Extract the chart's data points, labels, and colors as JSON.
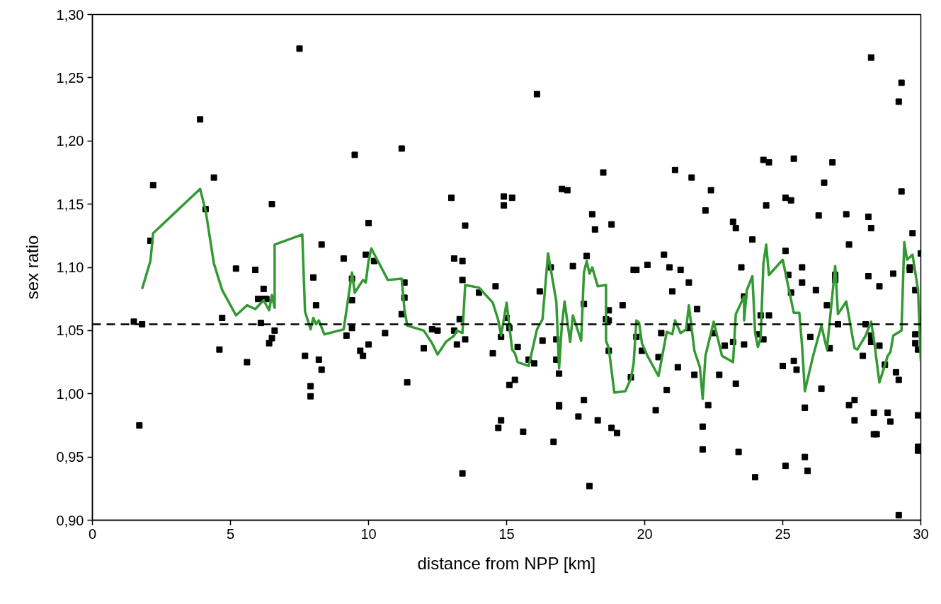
{
  "chart_data": {
    "type": "scatter",
    "xlabel": "distance from NPP [km]",
    "ylabel": "sex ratio",
    "xlim": [
      0,
      30
    ],
    "ylim": [
      0.9,
      1.3
    ],
    "xticks": [
      0,
      5,
      10,
      15,
      20,
      25,
      30
    ],
    "yticks": [
      {
        "value": 0.9,
        "label": "0,90"
      },
      {
        "value": 0.95,
        "label": "0,95"
      },
      {
        "value": 1.0,
        "label": "1,00"
      },
      {
        "value": 1.05,
        "label": "1,05"
      },
      {
        "value": 1.1,
        "label": "1,10"
      },
      {
        "value": 1.15,
        "label": "1,15"
      },
      {
        "value": 1.2,
        "label": "1,20"
      },
      {
        "value": 1.25,
        "label": "1,25"
      },
      {
        "value": 1.3,
        "label": "1,30"
      }
    ],
    "grid": false,
    "ref_lines": [
      {
        "axis": "y",
        "value": 1.055,
        "label": null,
        "color": "#000000",
        "line_style": "dashed"
      }
    ],
    "series": [
      {
        "color": "#000000",
        "marker": "square",
        "x": [
          1.5,
          1.7,
          1.8,
          2.1,
          2.2,
          3.9,
          4.1,
          4.4,
          4.6,
          4.7,
          5.2,
          5.6,
          5.9,
          6.0,
          6.1,
          6.2,
          6.2,
          6.3,
          6.4,
          6.5,
          6.5,
          6.6,
          7.5,
          7.7,
          7.9,
          7.9,
          8.0,
          8.1,
          8.2,
          8.3,
          8.3,
          9.1,
          9.2,
          9.4,
          9.4,
          9.4,
          9.5,
          9.7,
          9.8,
          9.9,
          10.0,
          10.0,
          10.2,
          10.6,
          11.2,
          11.2,
          11.3,
          11.3,
          11.4,
          12.0,
          12.3,
          12.5,
          13.0,
          13.1,
          13.1,
          13.2,
          13.3,
          13.4,
          13.4,
          13.4,
          13.5,
          13.5,
          14.0,
          14.5,
          14.6,
          14.7,
          14.8,
          14.8,
          14.9,
          14.9,
          15.0,
          15.1,
          15.1,
          15.2,
          15.3,
          15.4,
          15.6,
          15.8,
          16.0,
          16.1,
          16.2,
          16.3,
          16.6,
          16.7,
          16.8,
          16.8,
          16.9,
          16.9,
          16.9,
          17.0,
          17.2,
          17.4,
          17.6,
          17.8,
          17.8,
          17.9,
          18.0,
          18.1,
          18.2,
          18.3,
          18.5,
          18.6,
          18.7,
          18.7,
          18.7,
          18.8,
          18.8,
          19.0,
          19.2,
          19.5,
          19.6,
          19.7,
          19.7,
          19.9,
          20.1,
          20.4,
          20.5,
          20.6,
          20.7,
          20.8,
          20.9,
          21.0,
          21.1,
          21.2,
          21.3,
          21.6,
          21.6,
          21.7,
          21.8,
          21.9,
          22.1,
          22.1,
          22.2,
          22.3,
          22.4,
          22.5,
          22.7,
          22.9,
          23.2,
          23.2,
          23.3,
          23.3,
          23.4,
          23.5,
          23.6,
          23.6,
          23.9,
          24.0,
          24.1,
          24.2,
          24.3,
          24.3,
          24.4,
          24.5,
          24.5,
          25.0,
          25.1,
          25.1,
          25.1,
          25.2,
          25.3,
          25.3,
          25.4,
          25.4,
          25.5,
          25.7,
          25.7,
          25.8,
          25.8,
          25.9,
          26.0,
          26.2,
          26.3,
          26.4,
          26.5,
          26.6,
          26.7,
          26.8,
          26.9,
          26.9,
          27.0,
          27.3,
          27.4,
          27.4,
          27.6,
          27.6,
          27.9,
          28.0,
          28.1,
          28.1,
          28.2,
          28.2,
          28.2,
          28.2,
          28.3,
          28.3,
          28.4,
          28.5,
          28.5,
          28.7,
          28.8,
          28.9,
          29.0,
          29.1,
          29.2,
          29.2,
          29.2,
          29.3,
          29.3,
          29.6,
          29.6,
          29.7,
          29.8,
          29.8,
          29.8,
          29.9,
          29.9,
          29.9,
          29.9,
          30.0
        ],
        "values": [
          1.057,
          0.975,
          1.055,
          1.121,
          1.165,
          1.217,
          1.146,
          1.171,
          1.035,
          1.06,
          1.099,
          1.025,
          1.098,
          1.075,
          1.056,
          1.083,
          1.075,
          1.075,
          1.04,
          1.044,
          1.15,
          1.05,
          1.273,
          1.03,
          1.006,
          0.998,
          1.092,
          1.07,
          1.027,
          1.118,
          1.019,
          1.107,
          1.046,
          1.091,
          1.074,
          1.052,
          1.189,
          1.034,
          1.03,
          1.11,
          1.135,
          1.039,
          1.105,
          1.048,
          1.194,
          1.063,
          1.088,
          1.076,
          1.009,
          1.036,
          1.051,
          1.05,
          1.155,
          1.107,
          1.05,
          1.039,
          1.059,
          0.937,
          1.105,
          1.09,
          1.043,
          1.133,
          1.08,
          1.032,
          1.085,
          0.973,
          1.045,
          0.979,
          1.156,
          1.149,
          1.06,
          1.007,
          1.052,
          1.155,
          1.011,
          1.037,
          0.97,
          1.027,
          1.024,
          1.237,
          1.081,
          1.042,
          1.1,
          0.962,
          1.043,
          1.027,
          1.016,
          0.991,
          0.99,
          1.162,
          1.161,
          1.101,
          0.982,
          0.995,
          1.071,
          1.109,
          0.927,
          1.142,
          1.13,
          0.979,
          1.175,
          1.059,
          1.058,
          1.034,
          1.066,
          1.134,
          0.973,
          0.969,
          1.07,
          1.013,
          1.098,
          1.098,
          1.045,
          1.034,
          1.102,
          0.987,
          1.029,
          1.048,
          1.11,
          1.003,
          1.1,
          1.081,
          1.177,
          1.021,
          1.098,
          1.088,
          1.052,
          1.171,
          1.015,
          1.067,
          0.974,
          0.956,
          1.145,
          0.991,
          1.161,
          1.048,
          1.015,
          1.038,
          1.136,
          1.041,
          1.131,
          1.008,
          0.954,
          1.1,
          1.077,
          1.039,
          1.122,
          0.934,
          1.047,
          1.062,
          1.185,
          1.043,
          1.149,
          1.183,
          1.062,
          1.022,
          0.943,
          1.113,
          1.155,
          1.094,
          1.153,
          1.08,
          1.186,
          1.026,
          1.019,
          1.1,
          1.088,
          0.989,
          0.95,
          0.939,
          1.045,
          1.082,
          1.141,
          1.004,
          1.167,
          1.07,
          1.036,
          1.183,
          1.094,
          1.09,
          1.055,
          1.142,
          0.991,
          1.118,
          0.995,
          0.979,
          1.03,
          1.055,
          1.14,
          1.093,
          1.266,
          1.046,
          1.131,
          1.041,
          0.985,
          0.968,
          0.968,
          1.085,
          1.038,
          1.023,
          0.985,
          0.978,
          1.095,
          1.017,
          1.011,
          0.904,
          1.231,
          1.246,
          1.16,
          1.1,
          1.098,
          1.127,
          1.082,
          1.047,
          1.04,
          0.958,
          0.955,
          0.983,
          1.035,
          1.111
        ]
      },
      {
        "type": "line",
        "color": "#339933",
        "line_style": "solid",
        "marker": "none",
        "x": [
          1.8,
          2.1,
          2.2,
          3.9,
          4.1,
          4.4,
          4.7,
          5.2,
          5.6,
          5.9,
          6.2,
          6.4,
          6.5,
          6.6,
          6.6,
          7.6,
          7.7,
          7.9,
          8.0,
          8.1,
          8.2,
          8.4,
          9.1,
          9.4,
          9.5,
          9.8,
          9.9,
          10.0,
          10.1,
          10.7,
          11.2,
          11.3,
          11.4,
          12.0,
          12.3,
          12.5,
          12.8,
          13.1,
          13.2,
          13.4,
          13.5,
          14.0,
          14.5,
          14.7,
          14.8,
          15.0,
          15.2,
          15.3,
          15.4,
          15.8,
          16.1,
          16.3,
          16.5,
          16.8,
          16.9,
          17.0,
          17.1,
          17.3,
          17.4,
          17.7,
          17.8,
          17.9,
          18.0,
          18.1,
          18.3,
          18.6,
          18.6,
          18.7,
          18.9,
          19.3,
          19.5,
          19.6,
          19.7,
          19.8,
          19.9,
          20.1,
          20.5,
          20.8,
          21.0,
          21.1,
          21.3,
          21.5,
          21.6,
          21.8,
          22.0,
          22.1,
          22.2,
          22.5,
          22.8,
          23.2,
          23.3,
          23.6,
          23.6,
          23.7,
          23.9,
          24.0,
          24.1,
          24.2,
          24.3,
          24.4,
          24.5,
          25.0,
          25.4,
          25.6,
          25.7,
          25.8,
          26.1,
          26.4,
          26.6,
          26.9,
          27.0,
          27.3,
          27.6,
          27.7,
          28.0,
          28.2,
          28.3,
          28.5,
          28.8,
          28.9,
          29.0,
          29.3,
          29.4,
          29.5,
          29.7,
          29.9,
          30.0
        ],
        "values": [
          1.083,
          1.105,
          1.127,
          1.162,
          1.145,
          1.103,
          1.082,
          1.062,
          1.07,
          1.067,
          1.074,
          1.066,
          1.078,
          1.068,
          1.118,
          1.126,
          1.065,
          1.051,
          1.06,
          1.055,
          1.058,
          1.047,
          1.051,
          1.096,
          1.08,
          1.09,
          1.088,
          1.105,
          1.115,
          1.09,
          1.091,
          1.067,
          1.054,
          1.05,
          1.04,
          1.031,
          1.041,
          1.046,
          1.05,
          1.048,
          1.086,
          1.084,
          1.072,
          1.058,
          1.046,
          1.072,
          1.035,
          1.032,
          1.025,
          1.022,
          1.051,
          1.059,
          1.111,
          1.073,
          1.02,
          1.054,
          1.073,
          1.041,
          1.062,
          1.042,
          1.096,
          1.105,
          1.095,
          1.1,
          1.085,
          1.086,
          1.042,
          1.036,
          1.001,
          1.002,
          1.012,
          1.024,
          1.058,
          1.056,
          1.04,
          1.03,
          1.014,
          1.049,
          1.047,
          1.058,
          1.048,
          1.051,
          1.07,
          1.034,
          1.021,
          0.996,
          1.03,
          1.057,
          1.03,
          1.025,
          1.063,
          1.077,
          1.058,
          1.082,
          1.093,
          1.048,
          1.037,
          1.044,
          1.103,
          1.118,
          1.094,
          1.106,
          1.064,
          1.064,
          1.038,
          1.002,
          1.03,
          1.054,
          1.035,
          1.101,
          1.063,
          1.073,
          1.036,
          1.035,
          1.046,
          1.057,
          1.043,
          1.009,
          1.03,
          1.033,
          1.046,
          1.05,
          1.12,
          1.106,
          1.11,
          1.082,
          1.026
        ]
      }
    ]
  }
}
